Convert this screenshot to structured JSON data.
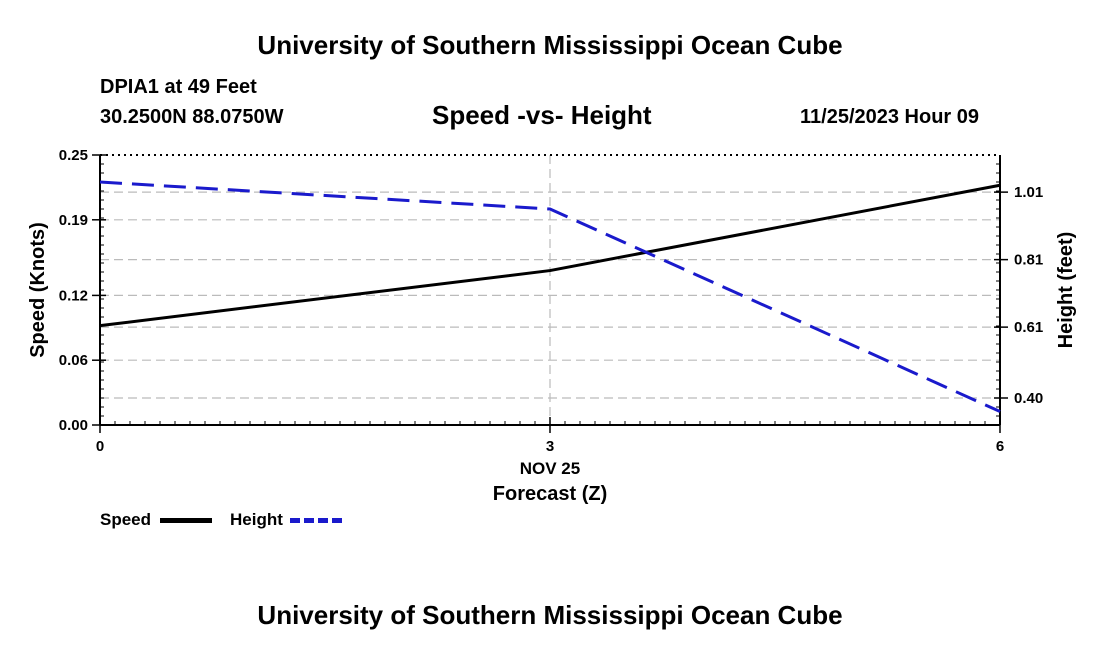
{
  "header": {
    "title": "University of Southern Mississippi Ocean Cube",
    "station": "DPIA1 at 49 Feet",
    "coords": "30.2500N  88.0750W",
    "datetime": "11/25/2023 Hour 09"
  },
  "footer": {
    "title": "University of Southern Mississippi Ocean Cube"
  },
  "colors": {
    "speed": "#000000",
    "height": "#1a1acc",
    "grid": "#bbbbbb"
  },
  "chart_data": {
    "type": "line",
    "title": "Speed -vs- Height",
    "xlabel": "Forecast (Z)",
    "x_date_label": "NOV 25",
    "x": [
      0,
      3,
      6
    ],
    "x_tick_labels": [
      "0",
      "3",
      "6"
    ],
    "xlim": [
      0,
      6
    ],
    "y_left": {
      "label": "Speed (Knots)",
      "lim": [
        0,
        0.25
      ],
      "ticks": [
        0.0,
        0.06,
        0.12,
        0.19,
        0.25
      ],
      "tick_labels": [
        "0.00",
        "0.06",
        "0.12",
        "0.19",
        "0.25"
      ]
    },
    "y_right": {
      "label": "Height (feet)",
      "lim": [
        0.32,
        1.12
      ],
      "ticks": [
        0.4,
        0.61,
        0.81,
        1.01
      ],
      "tick_labels": [
        "0.40",
        "0.61",
        "0.81",
        "1.01"
      ]
    },
    "series": [
      {
        "name": "Speed",
        "axis": "left",
        "style": "solid",
        "values": [
          0.092,
          0.143,
          0.222
        ]
      },
      {
        "name": "Height",
        "axis": "right",
        "style": "dashed",
        "values": [
          1.04,
          0.96,
          0.36
        ]
      }
    ],
    "legend": [
      "Speed",
      "Height"
    ],
    "grid": true
  }
}
